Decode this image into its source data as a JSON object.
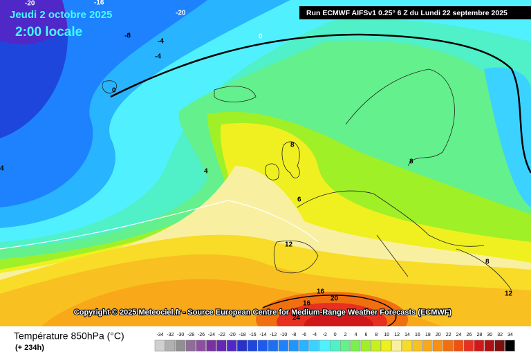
{
  "header": {
    "date": "Jeudi 2 octobre 2025",
    "time": "2:00 locale",
    "run": "Run ECMWF AIFSv1 0.25° 6 Z du Lundi 22 septembre 2025"
  },
  "copyright": "Copyright © 2025 Meteociel.fr - Source European Centre for Medium-Range Weather Forecasts (ECMWF)",
  "footer": {
    "title": "Température 850hPa (°C)",
    "lead_time": "(+ 234h)"
  },
  "legend": {
    "labels": [
      -34,
      -32,
      -30,
      -28,
      -26,
      -24,
      -22,
      -20,
      -18,
      -16,
      -14,
      -12,
      -10,
      -8,
      -6,
      -4,
      -2,
      0,
      2,
      4,
      6,
      8,
      10,
      12,
      14,
      16,
      18,
      20,
      22,
      24,
      26,
      28,
      30,
      32,
      34
    ],
    "colors": [
      "#d0d0d0",
      "#b0b0b0",
      "#909090",
      "#8c6e96",
      "#8c50a0",
      "#7832a0",
      "#6428b4",
      "#5028c8",
      "#2832c8",
      "#1e46dc",
      "#1e5af0",
      "#1e6ef0",
      "#1e82ff",
      "#1e96ff",
      "#28b4ff",
      "#3cd2ff",
      "#50f0ff",
      "#50f0c8",
      "#64f08c",
      "#78f050",
      "#a0f028",
      "#c8f020",
      "#f0f020",
      "#f8f0a0",
      "#f8dc28",
      "#f8c020",
      "#f8a818",
      "#f89010",
      "#f07010",
      "#f05010",
      "#e83020",
      "#d01818",
      "#b01010",
      "#801010",
      "#000000"
    ]
  },
  "contour_labels": [
    -20,
    -16,
    -20,
    -8,
    -4,
    -4,
    0,
    0,
    4,
    4,
    8,
    8,
    6,
    12,
    16,
    16,
    20,
    24,
    8,
    12
  ]
}
